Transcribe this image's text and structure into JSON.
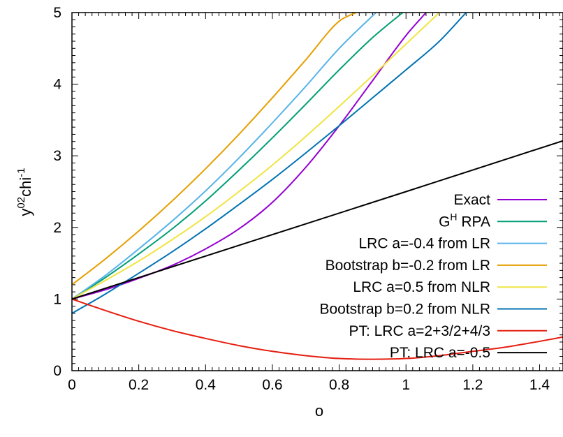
{
  "chart_data": {
    "type": "line",
    "xlabel": "o",
    "ylabel_main": "y",
    "ylabel_sup1": "02",
    "ylabel_mid": "chi",
    "ylabel_sup2": "-1",
    "xlim": [
      0,
      1.47
    ],
    "ylim": [
      0,
      5
    ],
    "x_ticks": [
      0,
      0.2,
      0.4,
      0.6,
      0.8,
      1,
      1.2,
      1.4
    ],
    "x_tick_labels": [
      "0",
      "0.2",
      "0.4",
      "0.6",
      "0.8",
      "1",
      "1.2",
      "1.4"
    ],
    "y_ticks": [
      0,
      1,
      2,
      3,
      4,
      5
    ],
    "y_tick_labels": [
      "0",
      "1",
      "2",
      "3",
      "4",
      "5"
    ],
    "legend_position": "bottom-right",
    "series": [
      {
        "name": "Exact",
        "color": "#9400d3",
        "x": [
          0,
          0.1,
          0.2,
          0.3,
          0.4,
          0.5,
          0.6,
          0.7,
          0.8,
          0.9,
          1.0,
          1.06
        ],
        "y": [
          1.0,
          1.13,
          1.29,
          1.47,
          1.7,
          1.98,
          2.35,
          2.84,
          3.42,
          4.05,
          4.68,
          5.0
        ]
      },
      {
        "name": "G^H RPA",
        "name_main": "G",
        "name_sup": "H",
        "name_rest": " RPA",
        "color": "#009e73",
        "x": [
          0,
          0.1,
          0.2,
          0.3,
          0.4,
          0.5,
          0.6,
          0.7,
          0.8,
          0.9,
          0.99
        ],
        "y": [
          1.0,
          1.3,
          1.63,
          1.98,
          2.37,
          2.8,
          3.25,
          3.72,
          4.2,
          4.65,
          5.0
        ]
      },
      {
        "name": "LRC a=-0.4 from LR",
        "color": "#56b4e9",
        "x": [
          0,
          0.1,
          0.2,
          0.3,
          0.4,
          0.5,
          0.6,
          0.7,
          0.8,
          0.91
        ],
        "y": [
          1.0,
          1.33,
          1.7,
          2.09,
          2.51,
          2.97,
          3.46,
          3.97,
          4.5,
          5.0
        ]
      },
      {
        "name": "Bootstrap b=-0.2 from LR",
        "color": "#e69f00",
        "x": [
          0,
          0.1,
          0.2,
          0.3,
          0.4,
          0.5,
          0.6,
          0.7,
          0.8,
          0.85
        ],
        "y": [
          1.2,
          1.56,
          1.95,
          2.37,
          2.82,
          3.3,
          3.81,
          4.34,
          4.88,
          5.0
        ]
      },
      {
        "name": "LRC a=0.5 from NLR",
        "color": "#f0e442",
        "x": [
          0,
          0.1,
          0.2,
          0.3,
          0.4,
          0.5,
          0.6,
          0.7,
          0.8,
          0.9,
          1.0,
          1.1
        ],
        "y": [
          1.0,
          1.26,
          1.53,
          1.83,
          2.15,
          2.5,
          2.87,
          3.27,
          3.69,
          4.12,
          4.56,
          5.0
        ]
      },
      {
        "name": "Bootstrap b=0.2 from NLR",
        "color": "#0072b2",
        "x": [
          0,
          0.1,
          0.2,
          0.3,
          0.4,
          0.5,
          0.6,
          0.7,
          0.8,
          0.9,
          1.0,
          1.1,
          1.18
        ],
        "y": [
          0.8,
          1.07,
          1.36,
          1.66,
          1.98,
          2.32,
          2.67,
          3.04,
          3.42,
          3.81,
          4.2,
          4.6,
          5.0
        ]
      },
      {
        "name": "PT: LRC a=2+3/2+4/3",
        "color": "#e51e10",
        "x": [
          0,
          0.1,
          0.2,
          0.3,
          0.4,
          0.5,
          0.6,
          0.7,
          0.8,
          0.9,
          1.0,
          1.1,
          1.2,
          1.3,
          1.4,
          1.47
        ],
        "y": [
          1.0,
          0.84,
          0.69,
          0.56,
          0.45,
          0.35,
          0.27,
          0.21,
          0.17,
          0.16,
          0.17,
          0.21,
          0.27,
          0.33,
          0.41,
          0.47
        ]
      },
      {
        "name": "PT: LRC a=-0.5",
        "color": "#000000",
        "x": [
          0,
          0.5,
          1.0,
          1.47
        ],
        "y": [
          1.0,
          1.75,
          2.5,
          3.21
        ]
      }
    ]
  }
}
